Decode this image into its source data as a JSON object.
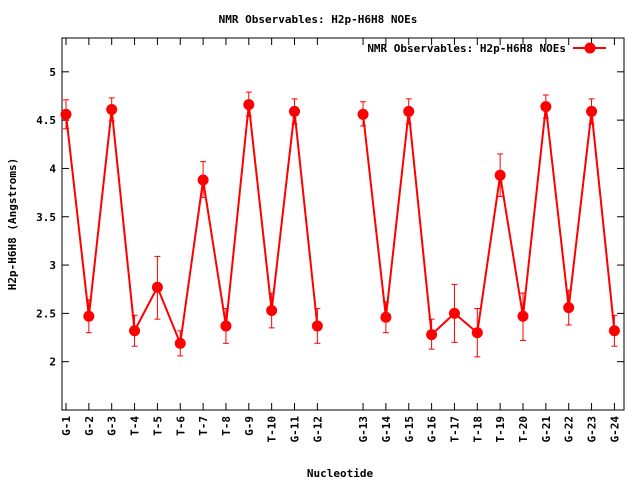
{
  "chart_data": {
    "type": "line",
    "title": "NMR Observables: H2p-H6H8 NOEs",
    "xlabel": "Nucleotide",
    "ylabel": "H2p-H6H8 (Angstroms)",
    "ylim": [
      1.5,
      5.35
    ],
    "yticks": [
      "2",
      "2.5",
      "3",
      "3.5",
      "4",
      "4.5",
      "5"
    ],
    "ytick_values": [
      2,
      2.5,
      3,
      3.5,
      4,
      4.5,
      5
    ],
    "grid": false,
    "legend_position": "top-right",
    "segments": [
      {
        "categories": [
          "G-1",
          "G-2",
          "G-3",
          "T-4",
          "T-5",
          "T-6",
          "T-7",
          "T-8",
          "G-9",
          "T-10",
          "G-11",
          "G-12"
        ],
        "x": [
          1,
          2,
          3,
          4,
          5,
          6,
          7,
          8,
          9,
          10,
          11,
          12
        ],
        "values": [
          4.56,
          2.47,
          4.61,
          2.32,
          2.77,
          2.19,
          3.88,
          2.37,
          4.66,
          2.53,
          4.59,
          2.37
        ],
        "err_low": [
          4.41,
          2.3,
          4.49,
          2.16,
          2.44,
          2.06,
          3.7,
          2.19,
          4.54,
          2.35,
          4.46,
          2.19
        ],
        "err_high": [
          4.71,
          2.64,
          4.73,
          2.48,
          3.09,
          2.32,
          4.07,
          2.55,
          4.79,
          2.71,
          4.72,
          2.55
        ]
      },
      {
        "categories": [
          "G-13",
          "G-14",
          "G-15",
          "G-16",
          "T-17",
          "T-18",
          "T-19",
          "T-20",
          "G-21",
          "G-22",
          "G-23",
          "G-24"
        ],
        "x": [
          14,
          15,
          16,
          17,
          18,
          19,
          20,
          21,
          22,
          23,
          24,
          25
        ],
        "values": [
          4.56,
          2.46,
          4.59,
          2.28,
          2.5,
          2.3,
          3.93,
          2.47,
          4.64,
          2.56,
          4.59,
          2.32
        ],
        "err_low": [
          4.44,
          2.3,
          4.46,
          2.13,
          2.2,
          2.05,
          3.71,
          2.22,
          4.52,
          2.38,
          4.46,
          2.16
        ],
        "err_high": [
          4.69,
          2.62,
          4.72,
          2.44,
          2.8,
          2.55,
          4.15,
          2.71,
          4.76,
          2.74,
          4.72,
          2.48
        ]
      }
    ],
    "series": [
      {
        "name": "NMR Observables: H2p-H6H8 NOEs",
        "color": "#ff0000"
      }
    ]
  }
}
